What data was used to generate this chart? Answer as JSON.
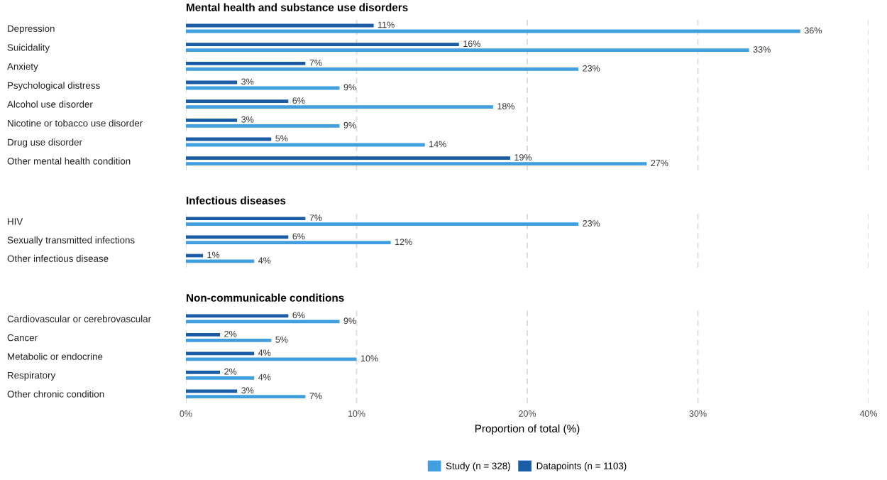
{
  "chart_data": [
    {
      "type": "bar",
      "orientation": "horizontal",
      "title": "Mental health and substance use disorders",
      "categories": [
        "Depression",
        "Suicidality",
        "Anxiety",
        "Psychological distress",
        "Alcohol use disorder",
        "Nicotine or tobacco use disorder",
        "Drug use disorder",
        "Other mental health condition"
      ],
      "series": [
        {
          "name": "Study (n = 328)",
          "color": "#419fe0",
          "values": [
            36,
            33,
            23,
            9,
            18,
            9,
            14,
            27
          ],
          "value_labels": [
            "36%",
            "33%",
            "23%",
            "9%",
            "18%",
            "9%",
            "14%",
            "27%"
          ]
        },
        {
          "name": "Datapoints (n = 1103)",
          "color": "#1a5ca6",
          "values": [
            11,
            16,
            7,
            3,
            6,
            3,
            5,
            19
          ],
          "value_labels": [
            "11%",
            "16%",
            "7%",
            "3%",
            "6%",
            "3%",
            "5%",
            "19%"
          ]
        }
      ],
      "xlim": [
        0,
        40
      ],
      "xticks": [
        {
          "value": 0,
          "label": null
        },
        {
          "value": 10,
          "label": null
        },
        {
          "value": 20,
          "label": null
        },
        {
          "value": 30,
          "label": null
        },
        {
          "value": 40,
          "label": null
        }
      ],
      "tick_labels": "y",
      "grid": "x",
      "legend": "bottom"
    },
    {
      "type": "bar",
      "orientation": "horizontal",
      "title": "Infectious diseases",
      "categories": [
        "HIV",
        "Sexually transmitted infections",
        "Other infectious disease"
      ],
      "series": [
        {
          "color": "#419fe0",
          "values": [
            23,
            12,
            4
          ],
          "value_labels": [
            "23%",
            "12%",
            "4%"
          ]
        },
        {
          "color": "#1a5ca6",
          "values": [
            7,
            6,
            1
          ],
          "value_labels": [
            "7%",
            "6%",
            "1%"
          ]
        }
      ],
      "xlim": [
        0,
        40
      ],
      "xticks": [
        {
          "value": 0,
          "label": null
        },
        {
          "value": 10,
          "label": null
        },
        {
          "value": 20,
          "label": null
        },
        {
          "value": 30,
          "label": null
        },
        {
          "value": 40,
          "label": null
        }
      ],
      "tick_labels": "y",
      "grid": "x"
    },
    {
      "type": "bar",
      "orientation": "horizontal",
      "title": "Non-communicable conditions",
      "categories": [
        "Cardiovascular or cerebrovascular",
        "Cancer",
        "Metabolic or endocrine",
        "Respiratory",
        "Other chronic condition"
      ],
      "series": [
        {
          "color": "#419fe0",
          "values": [
            9,
            5,
            10,
            4,
            7
          ],
          "value_labels": [
            "9%",
            "5%",
            "10%",
            "4%",
            "7%"
          ]
        },
        {
          "color": "#1a5ca6",
          "values": [
            6,
            2,
            4,
            2,
            3
          ],
          "value_labels": [
            "6%",
            "2%",
            "4%",
            "2%",
            "3%"
          ]
        }
      ],
      "xlim": [
        0,
        40
      ],
      "xticks": [
        {
          "value": 0,
          "label": "0%"
        },
        {
          "value": 10,
          "label": "10%"
        },
        {
          "value": 20,
          "label": "20%"
        },
        {
          "value": 30,
          "label": "30%"
        },
        {
          "value": 40,
          "label": "40%"
        }
      ],
      "xlabel": "Proportion of total (%)",
      "grid": "x"
    }
  ]
}
